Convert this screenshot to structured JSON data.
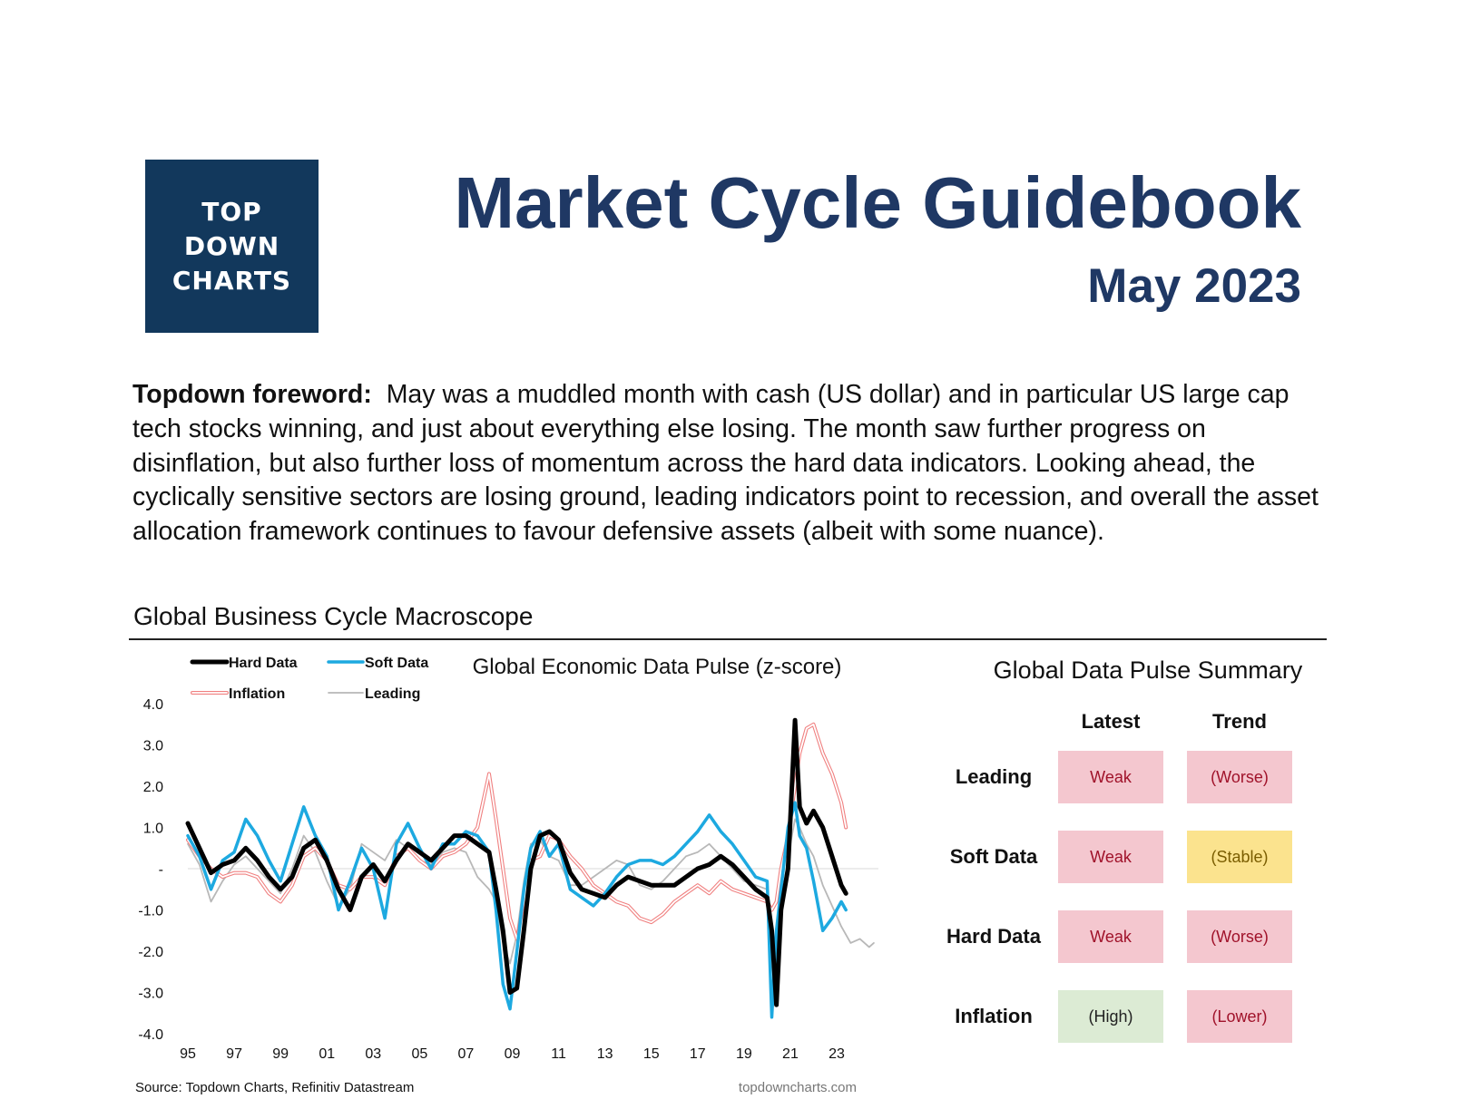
{
  "logo": {
    "line1": "TOP",
    "line2": "DOWN",
    "line3": "CHARTS"
  },
  "header": {
    "title": "Market Cycle Guidebook",
    "date": "May 2023"
  },
  "foreword": {
    "lead": "Topdown foreword:",
    "text": "May was a muddled month with cash (US dollar) and in particular US large cap tech stocks winning, and just about everything else losing.  The month saw further progress on disinflation, but also further loss of momentum across the hard data indicators.  Looking ahead, the cyclically sensitive sectors are losing ground, leading indicators point to recession, and overall the asset allocation framework continues to favour defensive assets (albeit with some nuance)."
  },
  "section": {
    "title": "Global Business Cycle Macroscope"
  },
  "chart_data": {
    "type": "line",
    "title": "Global Economic Data Pulse (z-score)",
    "source": "Source: Topdown Charts, Refinitiv Datastream",
    "watermark": "topdowncharts.com",
    "xlabel": "",
    "ylabel": "",
    "xlim": [
      1995,
      2024.8
    ],
    "ylim": [
      -4,
      4
    ],
    "x_tick_values": [
      1995,
      1997,
      1999,
      2001,
      2003,
      2005,
      2007,
      2009,
      2011,
      2013,
      2015,
      2017,
      2019,
      2021,
      2023
    ],
    "x_ticks": [
      "95",
      "97",
      "99",
      "01",
      "03",
      "05",
      "07",
      "09",
      "11",
      "13",
      "15",
      "17",
      "19",
      "21",
      "23"
    ],
    "y_tick_values": [
      4,
      3,
      2,
      1,
      0,
      -1,
      -2,
      -3,
      -4
    ],
    "y_ticks": [
      "4.0",
      "3.0",
      "2.0",
      "1.0",
      "-",
      "-1.0",
      "-2.0",
      "-3.0",
      "-4.0"
    ],
    "legend_position": "top-left",
    "zero_line": true,
    "series": [
      {
        "name": "Hard Data",
        "color": "#000000",
        "x": [
          1995,
          1995.5,
          1996,
          1996.5,
          1997,
          1997.5,
          1998,
          1998.5,
          1999,
          1999.5,
          2000,
          2000.5,
          2001,
          2001.5,
          2002,
          2002.5,
          2003,
          2003.5,
          2004,
          2004.5,
          2005,
          2005.5,
          2006,
          2006.5,
          2007,
          2007.5,
          2008,
          2008.3,
          2008.6,
          2008.9,
          2009.2,
          2009.5,
          2009.8,
          2010.2,
          2010.6,
          2011,
          2011.5,
          2012,
          2012.5,
          2013,
          2013.5,
          2014,
          2014.5,
          2015,
          2015.5,
          2016,
          2016.5,
          2017,
          2017.5,
          2018,
          2018.5,
          2019,
          2019.5,
          2020,
          2020.2,
          2020.4,
          2020.6,
          2020.9,
          2021.2,
          2021.4,
          2021.7,
          2022,
          2022.4,
          2022.8,
          2023.2,
          2023.4
        ],
        "y": [
          1.1,
          0.5,
          -0.1,
          0.1,
          0.2,
          0.5,
          0.2,
          -0.2,
          -0.5,
          -0.2,
          0.5,
          0.7,
          0.2,
          -0.5,
          -1.0,
          -0.2,
          0.1,
          -0.3,
          0.2,
          0.6,
          0.4,
          0.2,
          0.5,
          0.8,
          0.8,
          0.6,
          0.4,
          -0.5,
          -1.5,
          -3.0,
          -2.9,
          -1.5,
          0.0,
          0.8,
          0.9,
          0.7,
          -0.1,
          -0.5,
          -0.6,
          -0.7,
          -0.4,
          -0.2,
          -0.3,
          -0.4,
          -0.4,
          -0.4,
          -0.2,
          0.0,
          0.1,
          0.3,
          0.1,
          -0.2,
          -0.5,
          -0.7,
          -1.5,
          -3.3,
          -1.0,
          0.0,
          3.6,
          1.5,
          1.1,
          1.4,
          1.0,
          0.3,
          -0.4,
          -0.6
        ]
      },
      {
        "name": "Soft Data",
        "color": "#1da9e0",
        "x": [
          1995,
          1995.5,
          1996,
          1996.5,
          1997,
          1997.5,
          1998,
          1998.5,
          1999,
          1999.5,
          2000,
          2000.5,
          2001,
          2001.5,
          2002,
          2002.5,
          2003,
          2003.5,
          2004,
          2004.5,
          2005,
          2005.5,
          2006,
          2006.5,
          2007,
          2007.5,
          2008,
          2008.3,
          2008.6,
          2008.9,
          2009.2,
          2009.5,
          2009.8,
          2010.2,
          2010.6,
          2011,
          2011.5,
          2012,
          2012.5,
          2013,
          2013.5,
          2014,
          2014.5,
          2015,
          2015.5,
          2016,
          2016.5,
          2017,
          2017.5,
          2018,
          2018.5,
          2019,
          2019.5,
          2020,
          2020.2,
          2020.4,
          2020.6,
          2020.9,
          2021.2,
          2021.4,
          2021.7,
          2022,
          2022.4,
          2022.8,
          2023.2,
          2023.4
        ],
        "y": [
          0.8,
          0.3,
          -0.5,
          0.2,
          0.4,
          1.2,
          0.8,
          0.2,
          -0.3,
          0.6,
          1.5,
          0.8,
          0.3,
          -1.0,
          -0.3,
          0.5,
          0.0,
          -1.2,
          0.6,
          1.1,
          0.5,
          0.0,
          0.6,
          0.6,
          0.9,
          0.8,
          0.4,
          -1.0,
          -2.8,
          -3.4,
          -2.0,
          -0.5,
          0.5,
          0.9,
          0.3,
          0.6,
          -0.5,
          -0.7,
          -0.9,
          -0.6,
          -0.2,
          0.1,
          0.2,
          0.2,
          0.1,
          0.3,
          0.6,
          0.9,
          1.3,
          0.9,
          0.6,
          0.2,
          -0.2,
          -0.3,
          -3.6,
          -1.5,
          -0.5,
          1.0,
          1.6,
          0.8,
          0.5,
          -0.3,
          -1.5,
          -1.2,
          -0.8,
          -1.0
        ]
      },
      {
        "name": "Inflation",
        "color": "#f08080",
        "x": [
          1995,
          1995.5,
          1996,
          1996.5,
          1997,
          1997.5,
          1998,
          1998.5,
          1999,
          1999.5,
          2000,
          2000.5,
          2001,
          2001.5,
          2002,
          2002.5,
          2003,
          2003.5,
          2004,
          2004.5,
          2005,
          2005.5,
          2006,
          2006.5,
          2007,
          2007.5,
          2008,
          2008.3,
          2008.6,
          2008.9,
          2009.2,
          2009.5,
          2009.8,
          2010.2,
          2010.6,
          2011,
          2011.5,
          2012,
          2012.5,
          2013,
          2013.5,
          2014,
          2014.5,
          2015,
          2015.5,
          2016,
          2016.5,
          2017,
          2017.5,
          2018,
          2018.5,
          2019,
          2019.5,
          2020,
          2020.2,
          2020.4,
          2020.6,
          2020.9,
          2021.2,
          2021.4,
          2021.7,
          2022,
          2022.4,
          2022.8,
          2023.2,
          2023.4
        ],
        "y": [
          0.7,
          0.3,
          0.0,
          -0.2,
          -0.1,
          -0.1,
          -0.2,
          -0.6,
          -0.8,
          -0.4,
          0.3,
          0.5,
          0.2,
          -0.4,
          -0.5,
          -0.2,
          -0.2,
          -0.4,
          0.3,
          0.5,
          0.2,
          0.0,
          0.3,
          0.4,
          0.6,
          1.0,
          2.3,
          1.2,
          0.0,
          -1.2,
          -1.7,
          -0.8,
          0.2,
          0.3,
          0.8,
          0.7,
          0.3,
          0.0,
          -0.4,
          -0.6,
          -0.8,
          -0.9,
          -1.2,
          -1.3,
          -1.1,
          -0.8,
          -0.6,
          -0.4,
          -0.6,
          -0.3,
          -0.5,
          -0.6,
          -0.7,
          -0.8,
          -1.0,
          -0.8,
          0.0,
          0.8,
          2.0,
          2.8,
          3.4,
          3.5,
          2.8,
          2.3,
          1.6,
          1.0
        ]
      },
      {
        "name": "Leading",
        "color": "#b8b8b8",
        "x": [
          1995,
          1995.5,
          1996,
          1996.5,
          1997,
          1997.5,
          1998,
          1998.5,
          1999,
          1999.5,
          2000,
          2000.5,
          2001,
          2001.5,
          2002,
          2002.5,
          2003,
          2003.5,
          2004,
          2004.5,
          2005,
          2005.5,
          2006,
          2006.5,
          2007,
          2007.5,
          2008,
          2008.3,
          2008.6,
          2008.9,
          2009.2,
          2009.5,
          2009.8,
          2010.2,
          2010.6,
          2011,
          2011.5,
          2012,
          2012.5,
          2013,
          2013.5,
          2014,
          2014.5,
          2015,
          2015.5,
          2016,
          2016.5,
          2017,
          2017.5,
          2018,
          2018.5,
          2019,
          2019.5,
          2020,
          2020.2,
          2020.4,
          2020.6,
          2020.9,
          2021.2,
          2021.4,
          2021.7,
          2022,
          2022.4,
          2022.8,
          2023.2,
          2023.6,
          2024,
          2024.4,
          2024.6
        ],
        "y": [
          0.6,
          0.1,
          -0.8,
          -0.3,
          0.1,
          0.3,
          0.0,
          -0.3,
          -0.6,
          0.0,
          0.8,
          0.4,
          -0.3,
          -0.9,
          -0.5,
          0.6,
          0.4,
          0.2,
          0.7,
          0.5,
          0.2,
          0.1,
          0.4,
          0.5,
          0.4,
          -0.2,
          -0.5,
          -0.8,
          -1.8,
          -2.3,
          -1.6,
          -0.3,
          0.6,
          0.7,
          0.3,
          0.2,
          -0.4,
          -0.4,
          -0.2,
          0.0,
          0.2,
          0.1,
          -0.4,
          -0.5,
          -0.3,
          0.0,
          0.3,
          0.4,
          0.6,
          0.3,
          0.0,
          -0.3,
          -0.4,
          -0.5,
          -1.5,
          -2.5,
          -1.0,
          0.3,
          1.2,
          1.0,
          0.6,
          0.3,
          -0.4,
          -0.9,
          -1.4,
          -1.8,
          -1.7,
          -1.9,
          -1.8
        ]
      }
    ]
  },
  "summary": {
    "title": "Global Data Pulse Summary",
    "col_latest": "Latest",
    "col_trend": "Trend",
    "rows": [
      {
        "label": "Leading",
        "latest": "Weak",
        "latest_color": "red",
        "trend": "(Worse)",
        "trend_color": "red"
      },
      {
        "label": "Soft Data",
        "latest": "Weak",
        "latest_color": "red",
        "trend": "(Stable)",
        "trend_color": "yellow"
      },
      {
        "label": "Hard Data",
        "latest": "Weak",
        "latest_color": "red",
        "trend": "(Worse)",
        "trend_color": "red"
      },
      {
        "label": "Inflation",
        "latest": "(High)",
        "latest_color": "green",
        "trend": "(Lower)",
        "trend_color": "red"
      }
    ]
  }
}
